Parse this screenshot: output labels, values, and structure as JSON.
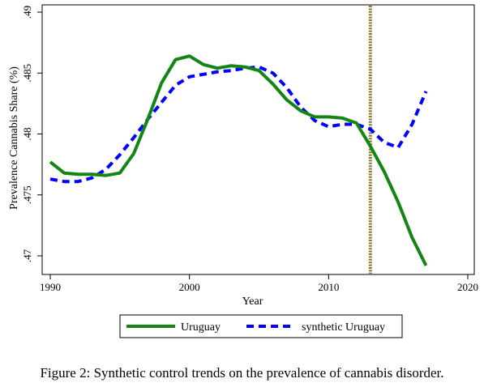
{
  "caption": "Figure 2: Synthetic control trends on the prevalence of cannabis disorder.",
  "chart_data": {
    "type": "line",
    "xlabel": "Year",
    "ylabel": "Prevalence Cannabis Share (%)",
    "xlim": [
      1990,
      2020
    ],
    "ylim": [
      0.469,
      0.4905
    ],
    "xticks": [
      "1990",
      "2000",
      "2010",
      "2020"
    ],
    "yticks": [
      ".47",
      ".475",
      ".48",
      ".485",
      ".49"
    ],
    "grid": false,
    "legend_placement": "bottom",
    "treatment_year": 2013,
    "x": [
      1990,
      1991,
      1992,
      1993,
      1994,
      1995,
      1996,
      1997,
      1998,
      1999,
      2000,
      2001,
      2002,
      2003,
      2004,
      2005,
      2006,
      2007,
      2008,
      2009,
      2010,
      2011,
      2012,
      2013,
      2014,
      2015,
      2016,
      2017
    ],
    "series": [
      {
        "name": "Uruguay",
        "color": "#138513",
        "style": "solid",
        "values": [
          0.4777,
          0.4768,
          0.4767,
          0.4767,
          0.4766,
          0.4768,
          0.4784,
          0.4812,
          0.4842,
          0.4861,
          0.4864,
          0.4857,
          0.4854,
          0.4856,
          0.4855,
          0.4852,
          0.4841,
          0.4828,
          0.4819,
          0.4814,
          0.4814,
          0.4813,
          0.4809,
          0.479,
          0.4769,
          0.4744,
          0.4715,
          0.4692
        ]
      },
      {
        "name": "synthetic Uruguay",
        "color": "#0000ff",
        "style": "dash",
        "values": [
          0.4763,
          0.4761,
          0.4761,
          0.4764,
          0.4771,
          0.4783,
          0.4797,
          0.4812,
          0.4826,
          0.484,
          0.4847,
          0.4849,
          0.4851,
          0.4852,
          0.4854,
          0.4855,
          0.485,
          0.4838,
          0.4822,
          0.4811,
          0.4806,
          0.4808,
          0.4808,
          0.4804,
          0.4793,
          0.4789,
          0.4808,
          0.4835
        ]
      }
    ],
    "annotations": [
      "vertical dashed line at 2013"
    ]
  }
}
